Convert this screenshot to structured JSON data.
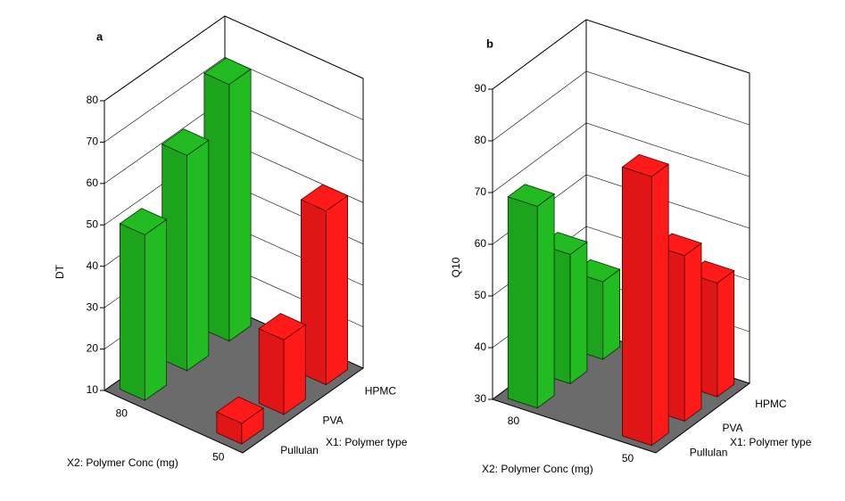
{
  "chart_data": [
    {
      "type": "bar3d",
      "title": "a",
      "zlabel": "DT",
      "xlabel": "X1: Polymer type",
      "ylabel": "X2: Polymer Conc (mg)",
      "categories": [
        "Pullulan",
        "PVA",
        "HPMC"
      ],
      "ycategories": [
        80,
        50
      ],
      "series": [
        {
          "color": "#22bb22",
          "values": [
            50,
            62,
            72
          ]
        },
        {
          "color": "#ff1a1a",
          "values": [
            15,
            28,
            52
          ]
        }
      ],
      "zlim": [
        10,
        80
      ],
      "zticks": [
        10,
        20,
        30,
        40,
        50,
        60,
        70,
        80
      ],
      "grid": true
    },
    {
      "type": "bar3d",
      "title": "b",
      "zlabel": "Q10",
      "xlabel": "X1: Polymer type",
      "ylabel": "X2: Polymer Conc (mg)",
      "categories": [
        "Pullulan",
        "PVA",
        "HPMC"
      ],
      "ycategories": [
        80,
        50
      ],
      "series": [
        {
          "color": "#22bb22",
          "values": [
            69,
            55,
            45
          ]
        },
        {
          "color": "#ff1a1a",
          "values": [
            82,
            62,
            52
          ]
        }
      ],
      "zlim": [
        30,
        90
      ],
      "zticks": [
        30,
        40,
        50,
        60,
        70,
        80,
        90
      ],
      "grid": true
    }
  ]
}
